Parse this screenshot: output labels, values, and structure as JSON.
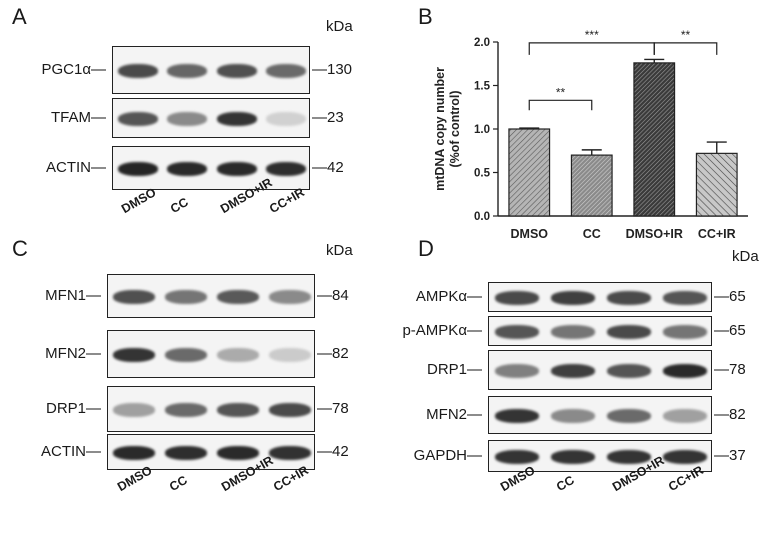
{
  "panels": {
    "A": {
      "letter": "A",
      "kda": "kDa",
      "lanes": [
        "DMSO",
        "CC",
        "DMSO+IR",
        "CC+IR"
      ],
      "blots": [
        {
          "name": "pgc1a",
          "label": "PGC1α—",
          "marker": "—130",
          "bands": [
            0.75,
            0.62,
            0.72,
            0.6
          ]
        },
        {
          "name": "tfam",
          "label": "TFAM—",
          "marker": "—23",
          "bands": [
            0.7,
            0.45,
            0.85,
            0.12
          ]
        },
        {
          "name": "actin",
          "label": "ACTIN—",
          "marker": "—42",
          "bands": [
            0.92,
            0.9,
            0.9,
            0.88
          ]
        }
      ]
    },
    "B": {
      "letter": "B"
    },
    "C": {
      "letter": "C",
      "kda": "kDa",
      "lanes": [
        "DMSO",
        "CC",
        "DMSO+IR",
        "CC+IR"
      ],
      "blots": [
        {
          "name": "mfn1",
          "label": "MFN1—",
          "marker": "—84",
          "bands": [
            0.72,
            0.55,
            0.68,
            0.45
          ]
        },
        {
          "name": "mfn2",
          "label": "MFN2—",
          "marker": "—82",
          "bands": [
            0.85,
            0.6,
            0.3,
            0.15
          ]
        },
        {
          "name": "drp1",
          "label": "DRP1—",
          "marker": "—78",
          "bands": [
            0.35,
            0.6,
            0.7,
            0.75
          ]
        },
        {
          "name": "actin",
          "label": "ACTIN—",
          "marker": "—42",
          "bands": [
            0.9,
            0.88,
            0.9,
            0.86
          ]
        }
      ]
    },
    "D": {
      "letter": "D",
      "kda": "kDa",
      "lanes": [
        "DMSO",
        "CC",
        "DMSO+IR",
        "CC+IR"
      ],
      "blots": [
        {
          "name": "ampka",
          "label": "AMPKα—",
          "marker": "—65",
          "bands": [
            0.75,
            0.8,
            0.75,
            0.7
          ]
        },
        {
          "name": "p-ampka",
          "label": "p-AMPKα—",
          "marker": "—65",
          "bands": [
            0.7,
            0.55,
            0.75,
            0.55
          ]
        },
        {
          "name": "drp1",
          "label": "DRP1—",
          "marker": "—78",
          "bands": [
            0.5,
            0.8,
            0.7,
            0.9
          ]
        },
        {
          "name": "mfn2",
          "label": "MFN2—",
          "marker": "—82",
          "bands": [
            0.85,
            0.45,
            0.6,
            0.35
          ]
        },
        {
          "name": "gapdh",
          "label": "GAPDH—",
          "marker": "—37",
          "bands": [
            0.85,
            0.85,
            0.85,
            0.85
          ]
        }
      ]
    }
  },
  "chart_data": {
    "type": "bar",
    "categories": [
      "DMSO",
      "CC",
      "DMSO+IR",
      "CC+IR"
    ],
    "values": [
      1.0,
      0.7,
      1.76,
      0.72
    ],
    "errors": [
      0.01,
      0.06,
      0.04,
      0.13
    ],
    "ylabel": "mtDNA copy number\n(%of control)",
    "ylim": [
      0,
      2.0
    ],
    "yticks": [
      "0.0",
      "0.5",
      "1.0",
      "1.5",
      "2.0"
    ],
    "fill_colors": [
      "#b5b5b5",
      "#8a8a8a",
      "#3a3a3a",
      "#c8c8c8"
    ],
    "significance": [
      {
        "from": "DMSO",
        "to": "CC",
        "label": "**"
      },
      {
        "from": "DMSO",
        "to": "DMSO+IR",
        "label": "***"
      },
      {
        "from": "DMSO+IR",
        "to": "CC+IR",
        "label": "**"
      }
    ]
  }
}
